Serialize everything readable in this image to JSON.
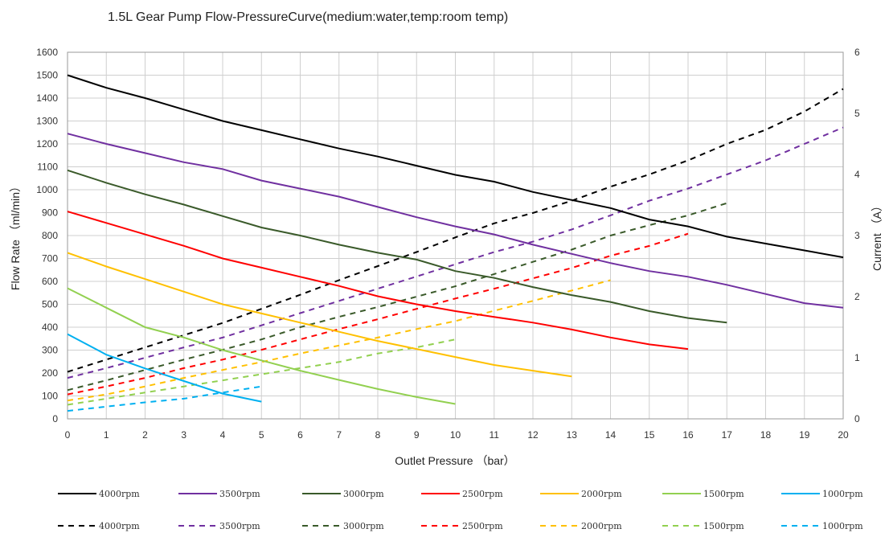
{
  "chart_data": {
    "type": "line",
    "title": "1.5L Gear Pump Flow-PressureCurve(medium:water,temp:room temp)",
    "xlabel": "Outlet Pressure （bar）",
    "ylabel_left": "Flow Rate （ml/min）",
    "ylabel_right": "Current （A）",
    "xlim": [
      0,
      20
    ],
    "ylim_left": [
      0,
      1600
    ],
    "ylim_right": [
      0,
      6
    ],
    "x_ticks": [
      "0",
      "1",
      "2",
      "3",
      "4",
      "5",
      "6",
      "7",
      "8",
      "9",
      "10",
      "11",
      "12",
      "13",
      "14",
      "15",
      "16",
      "17",
      "18",
      "19",
      "20"
    ],
    "y_left_ticks": [
      "0",
      "100",
      "200",
      "300",
      "400",
      "500",
      "600",
      "700",
      "800",
      "900",
      "1000",
      "1100",
      "1200",
      "1300",
      "1400",
      "1500",
      "1600"
    ],
    "y_right_ticks": [
      "0",
      "1",
      "2",
      "3",
      "4",
      "5",
      "6"
    ],
    "grid": true,
    "legend_position": "bottom",
    "flow_series": [
      {
        "name": "4000rpm",
        "color": "#000000",
        "x": [
          0,
          1,
          2,
          3,
          4,
          5,
          6,
          7,
          8,
          9,
          10,
          11,
          12,
          13,
          14,
          15,
          16,
          17,
          18,
          19,
          20
        ],
        "y": [
          1500,
          1445,
          1400,
          1350,
          1300,
          1260,
          1220,
          1180,
          1145,
          1105,
          1065,
          1035,
          990,
          955,
          920,
          870,
          840,
          795,
          765,
          735,
          705
        ]
      },
      {
        "name": "3500rpm",
        "color": "#7030a0",
        "x": [
          0,
          1,
          2,
          3,
          4,
          5,
          6,
          7,
          8,
          9,
          10,
          11,
          12,
          13,
          14,
          15,
          16,
          17,
          18,
          19,
          20
        ],
        "y": [
          1245,
          1200,
          1160,
          1120,
          1090,
          1040,
          1005,
          970,
          925,
          880,
          840,
          805,
          760,
          720,
          680,
          645,
          620,
          585,
          545,
          505,
          485
        ]
      },
      {
        "name": "3000rpm",
        "color": "#3a5a2a",
        "x": [
          0,
          1,
          2,
          3,
          4,
          5,
          6,
          7,
          8,
          9,
          10,
          11,
          12,
          13,
          14,
          15,
          16,
          17
        ],
        "y": [
          1085,
          1030,
          980,
          935,
          885,
          835,
          800,
          760,
          725,
          695,
          645,
          615,
          575,
          540,
          510,
          470,
          440,
          420
        ]
      },
      {
        "name": "2500rpm",
        "color": "#ff0000",
        "x": [
          0,
          1,
          2,
          3,
          4,
          5,
          6,
          7,
          8,
          9,
          10,
          11,
          12,
          13,
          14,
          15,
          16
        ],
        "y": [
          905,
          855,
          805,
          755,
          700,
          660,
          620,
          580,
          535,
          500,
          470,
          445,
          420,
          390,
          355,
          325,
          305
        ]
      },
      {
        "name": "2000rpm",
        "color": "#ffc000",
        "x": [
          0,
          1,
          2,
          3,
          4,
          5,
          6,
          7,
          8,
          9,
          10,
          11,
          12,
          13
        ],
        "y": [
          725,
          665,
          610,
          555,
          500,
          460,
          420,
          380,
          340,
          305,
          270,
          235,
          210,
          185
        ]
      },
      {
        "name": "1500rpm",
        "color": "#92d050",
        "x": [
          0,
          1,
          2,
          3,
          4,
          5,
          6,
          7,
          8,
          9,
          10
        ],
        "y": [
          570,
          485,
          400,
          355,
          300,
          255,
          210,
          170,
          130,
          95,
          65
        ]
      },
      {
        "name": "1000rpm",
        "color": "#00b0f0",
        "x": [
          0,
          1,
          2,
          3,
          4,
          5
        ],
        "y": [
          370,
          280,
          220,
          165,
          110,
          75
        ]
      }
    ],
    "current_series": [
      {
        "name": "4000rpm",
        "color": "#000000",
        "x": [
          0,
          1,
          2,
          3,
          4,
          5,
          6,
          7,
          8,
          9,
          10,
          11,
          12,
          13,
          14,
          15,
          16,
          17,
          18,
          19,
          20
        ],
        "y": [
          0.77,
          0.97,
          1.17,
          1.37,
          1.57,
          1.8,
          2.03,
          2.27,
          2.5,
          2.73,
          2.97,
          3.2,
          3.37,
          3.57,
          3.8,
          4.0,
          4.23,
          4.5,
          4.73,
          5.03,
          5.4
        ]
      },
      {
        "name": "3500rpm",
        "color": "#7030a0",
        "x": [
          0,
          1,
          2,
          3,
          4,
          5,
          6,
          7,
          8,
          9,
          10,
          11,
          12,
          13,
          14,
          15,
          16,
          17,
          18,
          19,
          20
        ],
        "y": [
          0.67,
          0.83,
          1.0,
          1.17,
          1.33,
          1.53,
          1.73,
          1.93,
          2.13,
          2.33,
          2.53,
          2.73,
          2.9,
          3.1,
          3.33,
          3.57,
          3.77,
          4.0,
          4.23,
          4.5,
          4.77
        ]
      },
      {
        "name": "3000rpm",
        "color": "#3a5a2a",
        "x": [
          0,
          1,
          2,
          3,
          4,
          5,
          6,
          7,
          8,
          9,
          10,
          11,
          12,
          13,
          14,
          15,
          16,
          17
        ],
        "y": [
          0.47,
          0.63,
          0.8,
          0.97,
          1.13,
          1.3,
          1.5,
          1.67,
          1.83,
          2.0,
          2.17,
          2.37,
          2.57,
          2.77,
          3.0,
          3.17,
          3.33,
          3.53
        ]
      },
      {
        "name": "2500rpm",
        "color": "#ff0000",
        "x": [
          0,
          1,
          2,
          3,
          4,
          5,
          6,
          7,
          8,
          9,
          10,
          11,
          12,
          13,
          14,
          15,
          16
        ],
        "y": [
          0.4,
          0.53,
          0.67,
          0.83,
          0.97,
          1.13,
          1.3,
          1.47,
          1.63,
          1.8,
          1.97,
          2.13,
          2.3,
          2.47,
          2.67,
          2.83,
          3.03
        ]
      },
      {
        "name": "2000rpm",
        "color": "#ffc000",
        "x": [
          0,
          1,
          2,
          3,
          4,
          5,
          6,
          7,
          8,
          9,
          10,
          11,
          12,
          13,
          14
        ],
        "y": [
          0.3,
          0.4,
          0.53,
          0.67,
          0.8,
          0.93,
          1.07,
          1.2,
          1.33,
          1.47,
          1.6,
          1.77,
          1.93,
          2.1,
          2.27
        ]
      },
      {
        "name": "1500rpm",
        "color": "#92d050",
        "x": [
          0,
          1,
          2,
          3,
          4,
          5,
          6,
          7,
          8,
          9,
          10
        ],
        "y": [
          0.23,
          0.33,
          0.43,
          0.53,
          0.63,
          0.73,
          0.83,
          0.93,
          1.07,
          1.17,
          1.3
        ]
      },
      {
        "name": "1000rpm",
        "color": "#00b0f0",
        "x": [
          0,
          1,
          2,
          3,
          4,
          5
        ],
        "y": [
          0.13,
          0.2,
          0.27,
          0.33,
          0.43,
          0.53
        ]
      }
    ]
  }
}
